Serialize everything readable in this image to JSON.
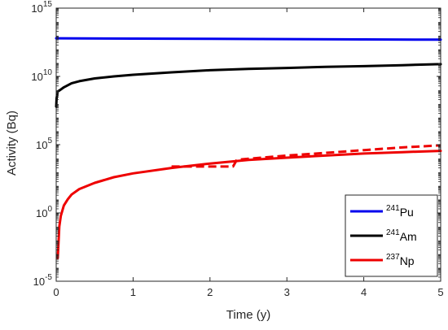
{
  "chart_data": {
    "type": "line",
    "xlabel": "Time (y)",
    "ylabel": "Activity (Bq)",
    "xlim": [
      0,
      5
    ],
    "ylim_log10": [
      -5,
      15
    ],
    "yscale": "log",
    "x_ticks": [
      "0",
      "1",
      "2",
      "3",
      "4",
      "5"
    ],
    "y_ticks": [
      {
        "base": "10",
        "exp": "-5"
      },
      {
        "base": "10",
        "exp": "0"
      },
      {
        "base": "10",
        "exp": "5"
      },
      {
        "base": "10",
        "exp": "10"
      },
      {
        "base": "10",
        "exp": "15"
      }
    ],
    "grid": false,
    "legend_position": "bottom-right",
    "series": [
      {
        "name_mass": "241",
        "name_symbol": "Pu",
        "color": "#0000ee",
        "style": "solid",
        "x": [
          0,
          1,
          2,
          3,
          4,
          5
        ],
        "y_log10": [
          12.79,
          12.77,
          12.75,
          12.73,
          12.71,
          12.69
        ]
      },
      {
        "name_mass": "241",
        "name_symbol": "Am",
        "color": "#000000",
        "style": "solid",
        "x": [
          0,
          0.005,
          0.02,
          0.05,
          0.1,
          0.2,
          0.3,
          0.5,
          0.75,
          1.0,
          1.5,
          2.0,
          2.5,
          3.0,
          3.5,
          4.0,
          4.5,
          5.0
        ],
        "y_log10": [
          7.8,
          8.4,
          8.9,
          9.0,
          9.2,
          9.5,
          9.65,
          9.85,
          10.0,
          10.12,
          10.3,
          10.45,
          10.55,
          10.62,
          10.7,
          10.75,
          10.82,
          10.9
        ]
      },
      {
        "name_mass": "237",
        "name_symbol": "Np",
        "color": "#ee0000",
        "style": "solid",
        "x": [
          0.02,
          0.04,
          0.06,
          0.1,
          0.15,
          0.2,
          0.3,
          0.5,
          0.75,
          1.0,
          1.5,
          2.0,
          2.5,
          3.0,
          3.5,
          4.0,
          4.5,
          5.0
        ],
        "y_log10": [
          -3.3,
          -1.0,
          -0.2,
          0.55,
          1.0,
          1.35,
          1.75,
          2.2,
          2.62,
          2.9,
          3.3,
          3.62,
          3.88,
          4.05,
          4.2,
          4.35,
          4.45,
          4.55
        ]
      },
      {
        "name_mass": "237",
        "name_symbol": "Np",
        "color": "#ee0000",
        "style": "dashed",
        "in_legend": false,
        "x": [
          1.5,
          2.3,
          2.35,
          3.0,
          3.5,
          4.0,
          4.5,
          5.0
        ],
        "y_log10": [
          3.4,
          3.4,
          3.9,
          4.2,
          4.4,
          4.6,
          4.8,
          4.95
        ]
      }
    ]
  }
}
